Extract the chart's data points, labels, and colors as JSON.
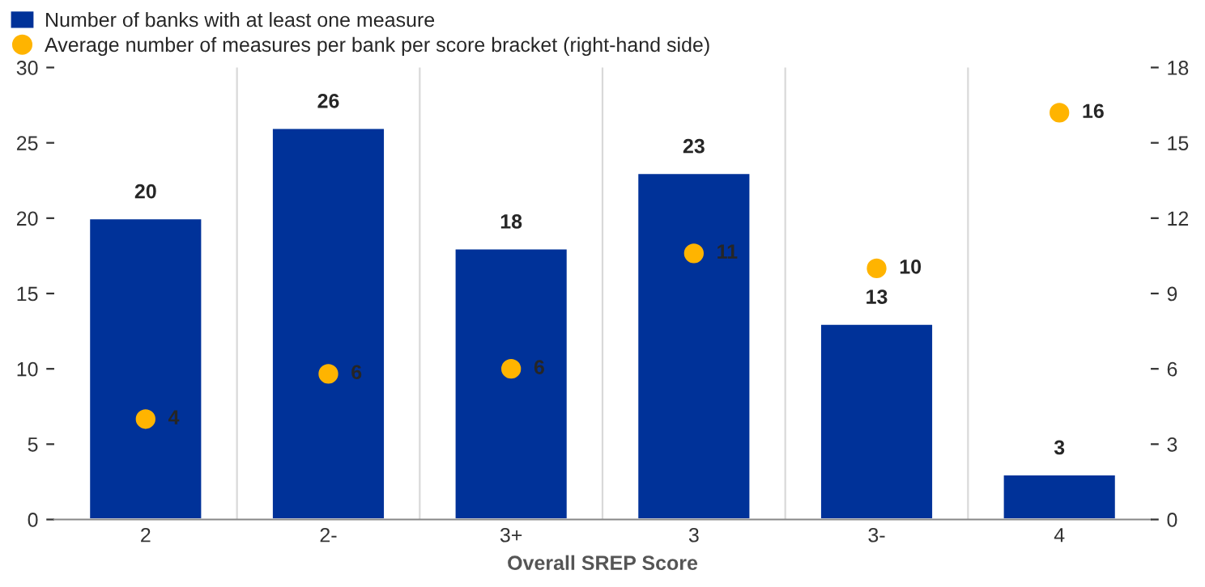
{
  "chart_data": {
    "type": "bar",
    "xlabel": "Overall SREP Score",
    "categories": [
      "2",
      "2-",
      "3+",
      "3",
      "3-",
      "4"
    ],
    "series": [
      {
        "name": "Number of banks with at least one measure",
        "color": "#003299",
        "values": [
          20,
          26,
          18,
          23,
          13,
          3
        ]
      },
      {
        "name": "Average number of measures per bank per score bracket (right-hand side)",
        "type": "scatter",
        "axis": "y2",
        "color": "#ffb400",
        "values": [
          4,
          5.8,
          6,
          10.6,
          10,
          16.2
        ],
        "value_labels": [
          "4",
          "6",
          "6",
          "11",
          "10",
          "16"
        ]
      }
    ],
    "data_labels": true,
    "ylim": [
      0,
      30
    ],
    "yticks": [
      0,
      5,
      10,
      15,
      20,
      25,
      30
    ],
    "y2lim": [
      0,
      18
    ],
    "y2ticks": [
      0,
      3,
      6,
      9,
      12,
      15,
      18
    ],
    "grid": "x",
    "legend": "top left",
    "marker": "circle"
  }
}
